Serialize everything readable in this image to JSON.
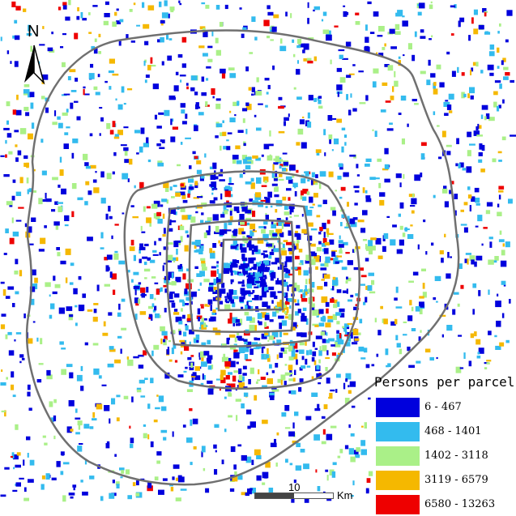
{
  "map": {
    "north_label": "N",
    "legend": {
      "title": "Persons per parcel",
      "classes": [
        {
          "label": "6 - 467",
          "color": "#0000dd"
        },
        {
          "label": "468 - 1401",
          "color": "#33bbee"
        },
        {
          "label": "1402 - 3118",
          "color": "#aaf088"
        },
        {
          "label": "3119 - 6579",
          "color": "#f5b800"
        },
        {
          "label": "6580 - 13263",
          "color": "#ee0000"
        }
      ]
    },
    "scale_bar": {
      "value_label": "10",
      "unit": "Km"
    },
    "ring_road_color": "#707070"
  }
}
